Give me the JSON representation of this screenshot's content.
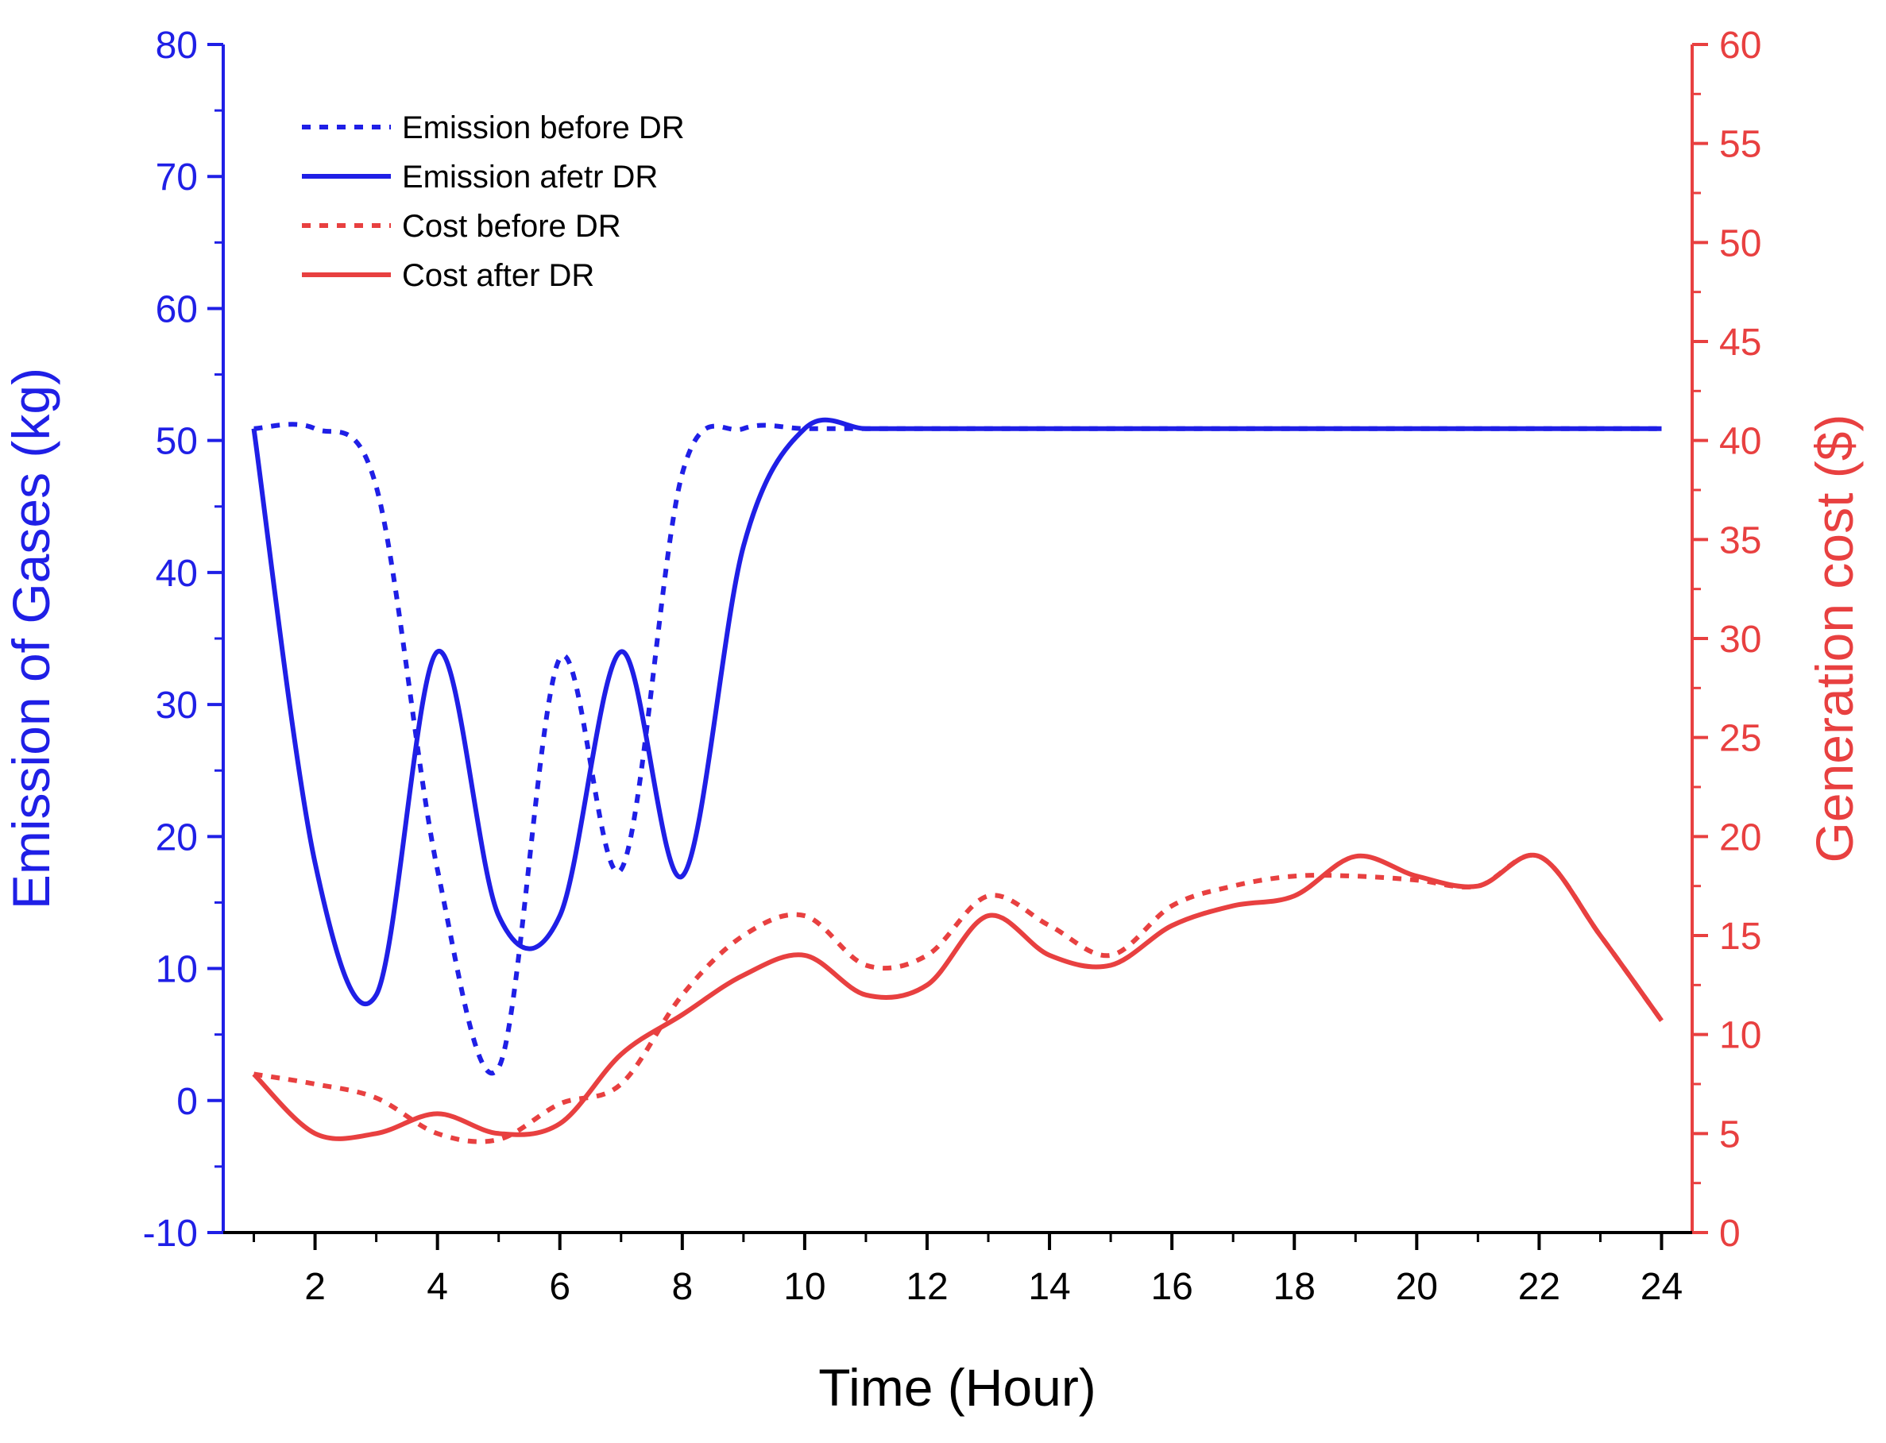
{
  "chart_data": {
    "type": "line",
    "title": "",
    "xlabel": "Time (Hour)",
    "ylabel_left": "Emission of Gases (kg)",
    "ylabel_right": "Generation cost ($)",
    "xlim": [
      0.5,
      24.5
    ],
    "ylim_left": [
      -10,
      80
    ],
    "ylim_right": [
      0,
      60
    ],
    "x_ticks": [
      2,
      4,
      6,
      8,
      10,
      12,
      14,
      16,
      18,
      20,
      22,
      24
    ],
    "y_left_ticks": [
      -10,
      0,
      10,
      20,
      30,
      40,
      50,
      60,
      70,
      80
    ],
    "y_right_ticks": [
      0,
      5,
      10,
      15,
      20,
      25,
      30,
      35,
      40,
      45,
      50,
      55,
      60
    ],
    "grid": false,
    "legend_position": "top-left",
    "colors": {
      "left_axis": "#1f1fe6",
      "right_axis": "#e84040",
      "emission": "#1f1fe6",
      "cost": "#e84040"
    },
    "series": [
      {
        "name": "Emission before DR",
        "axis": "left",
        "style": "dotted",
        "x": [
          1,
          2,
          3,
          4,
          5,
          6,
          7,
          8,
          9,
          10,
          11,
          12,
          13,
          14,
          15,
          16,
          17,
          18,
          19,
          20,
          21,
          22,
          23,
          24
        ],
        "values": [
          50.9,
          50.9,
          46.5,
          17.5,
          2.5,
          33.5,
          17.5,
          47.5,
          50.9,
          50.9,
          50.9,
          50.9,
          50.9,
          50.9,
          50.9,
          50.9,
          50.9,
          50.9,
          50.9,
          50.9,
          50.9,
          50.9,
          50.9,
          50.9
        ]
      },
      {
        "name": "Emission afetr DR",
        "axis": "left",
        "style": "solid",
        "x": [
          1,
          2,
          3,
          4,
          5,
          6,
          7,
          8,
          9,
          10,
          11,
          12,
          13,
          14,
          15,
          16,
          17,
          18,
          19,
          20,
          21,
          22,
          23,
          24
        ],
        "values": [
          50.9,
          18.0,
          8.0,
          34.0,
          14.0,
          14.0,
          34.0,
          17.0,
          42.0,
          50.9,
          50.9,
          50.9,
          50.9,
          50.9,
          50.9,
          50.9,
          50.9,
          50.9,
          50.9,
          50.9,
          50.9,
          50.9,
          50.9,
          50.9
        ]
      },
      {
        "name": "Cost before DR",
        "axis": "right",
        "style": "dotted",
        "x": [
          1,
          2,
          3,
          4,
          5,
          6,
          7,
          8,
          9,
          10,
          11,
          12,
          13,
          14,
          15,
          16,
          17,
          18,
          19,
          20,
          21,
          22,
          23,
          24
        ],
        "values": [
          8.0,
          7.5,
          6.8,
          5.0,
          4.7,
          6.5,
          7.5,
          12.0,
          15.0,
          16.0,
          13.5,
          14.0,
          17.0,
          15.5,
          14.0,
          16.5,
          17.5,
          18.0,
          18.0,
          17.8,
          17.5,
          19.0,
          15.0,
          10.7
        ]
      },
      {
        "name": "Cost after DR",
        "axis": "right",
        "style": "solid",
        "x": [
          1,
          2,
          3,
          4,
          5,
          6,
          7,
          8,
          9,
          10,
          11,
          12,
          13,
          14,
          15,
          16,
          17,
          18,
          19,
          20,
          21,
          22,
          23,
          24
        ],
        "values": [
          8.0,
          5.0,
          5.0,
          6.0,
          5.0,
          5.5,
          9.0,
          11.0,
          13.0,
          14.0,
          12.0,
          12.5,
          16.0,
          14.0,
          13.5,
          15.5,
          16.5,
          17.0,
          19.0,
          18.0,
          17.5,
          19.0,
          15.0,
          10.7
        ]
      }
    ]
  }
}
